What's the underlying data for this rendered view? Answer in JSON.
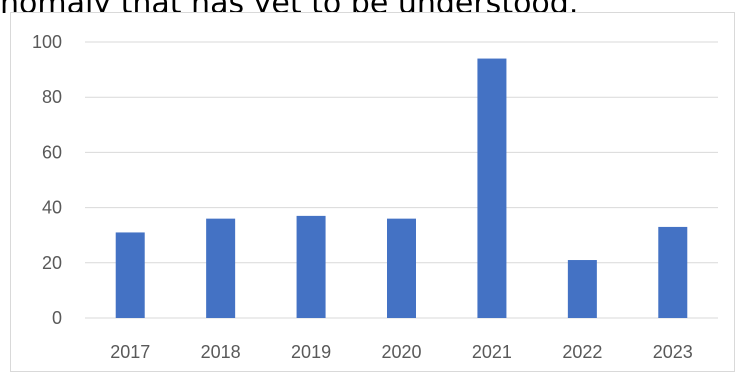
{
  "document": {
    "partial_text": "nomaly that has yet to be understood."
  },
  "colors": {
    "bar": "#4472c4",
    "gridline": "#d9d9d9",
    "tick_text": "#595959"
  },
  "chart_data": {
    "type": "bar",
    "title": "",
    "xlabel": "",
    "ylabel": "",
    "categories": [
      "2017",
      "2018",
      "2019",
      "2020",
      "2021",
      "2022",
      "2023"
    ],
    "values": [
      31,
      36,
      37,
      36,
      94,
      21,
      33
    ],
    "ylim": [
      0,
      100
    ],
    "yticks": [
      0,
      20,
      40,
      60,
      80,
      100
    ],
    "grid": true,
    "legend": "none"
  }
}
